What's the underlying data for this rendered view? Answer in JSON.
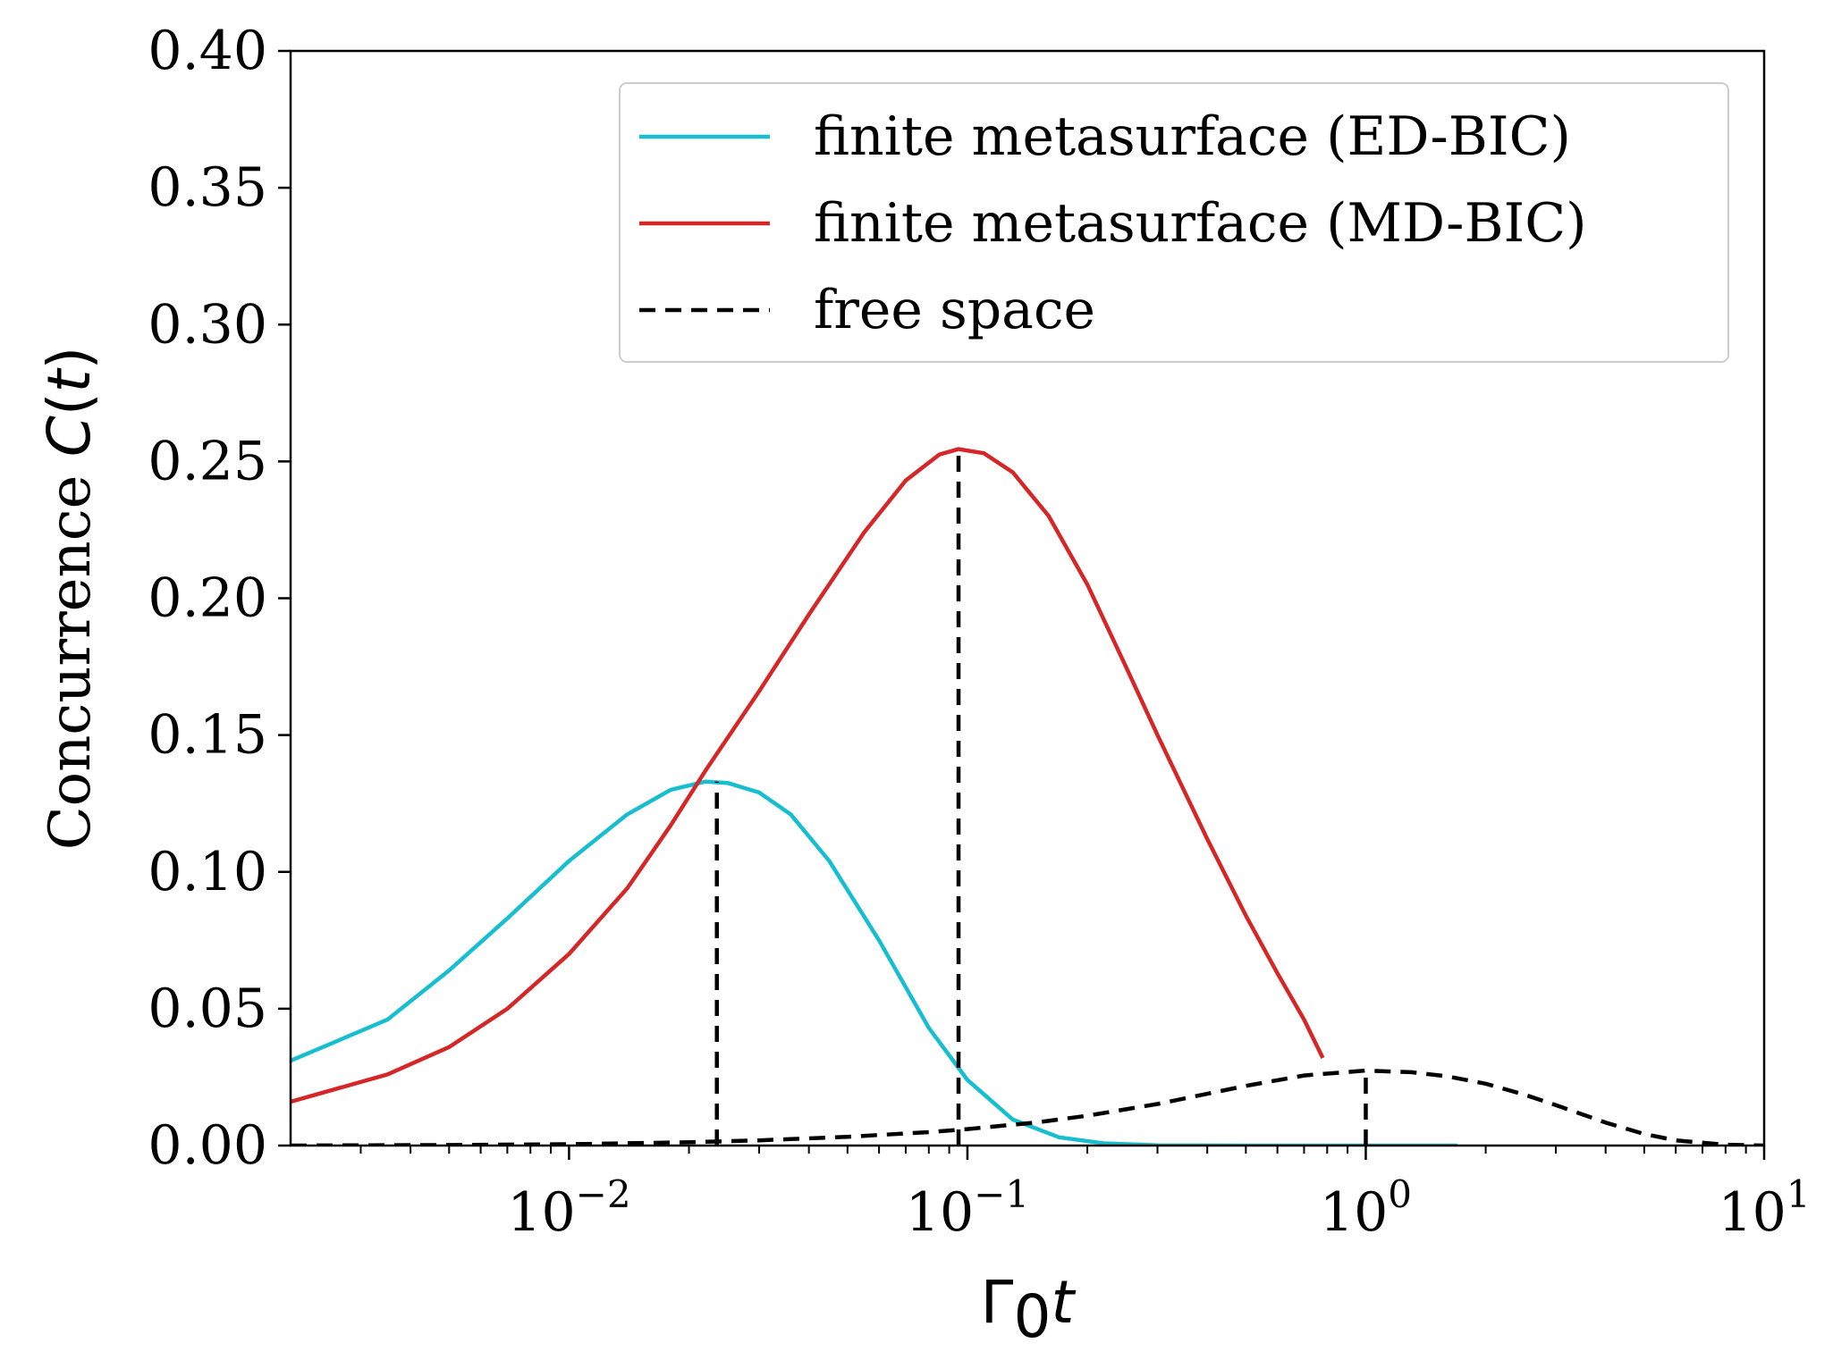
{
  "chart_data": {
    "type": "line",
    "title": "",
    "xlabel": "Γ0t",
    "xlabel_parts": {
      "symbol": "Γ",
      "subscript": "0",
      "var": "t"
    },
    "ylabel": "Concurrence C(t)",
    "ylabel_parts": {
      "text": "Concurrence ",
      "func": "C",
      "open": "(",
      "var": "t",
      "close": ")"
    },
    "xscale": "log",
    "xlim": [
      0.002,
      10
    ],
    "ylim": [
      0,
      0.4
    ],
    "grid": false,
    "legend_position": "top-right",
    "y_ticks": [
      {
        "value": 0.0,
        "label": "0.00"
      },
      {
        "value": 0.05,
        "label": "0.05"
      },
      {
        "value": 0.1,
        "label": "0.10"
      },
      {
        "value": 0.15,
        "label": "0.15"
      },
      {
        "value": 0.2,
        "label": "0.20"
      },
      {
        "value": 0.25,
        "label": "0.25"
      },
      {
        "value": 0.3,
        "label": "0.30"
      },
      {
        "value": 0.35,
        "label": "0.35"
      },
      {
        "value": 0.4,
        "label": "0.40"
      }
    ],
    "x_ticks": [
      {
        "value": 0.01,
        "base": "10",
        "exp": "−2"
      },
      {
        "value": 0.1,
        "base": "10",
        "exp": "−1"
      },
      {
        "value": 1,
        "base": "10",
        "exp": "0"
      },
      {
        "value": 10,
        "base": "10",
        "exp": "1"
      }
    ],
    "series": [
      {
        "name": "finite metasurface (ED-BIC)",
        "color": "#17becf",
        "dash": "solid",
        "x": [
          0.002,
          0.0035,
          0.005,
          0.007,
          0.01,
          0.014,
          0.018,
          0.022,
          0.025,
          0.03,
          0.036,
          0.045,
          0.06,
          0.08,
          0.1,
          0.13,
          0.17,
          0.22,
          0.3,
          0.5,
          1.0,
          1.7
        ],
        "y": [
          0.031,
          0.046,
          0.064,
          0.083,
          0.104,
          0.121,
          0.13,
          0.133,
          0.1325,
          0.129,
          0.121,
          0.104,
          0.075,
          0.043,
          0.024,
          0.0095,
          0.003,
          0.0008,
          0.0001,
          0.0,
          0.0,
          0.0
        ]
      },
      {
        "name": "finite metasurface (MD-BIC)",
        "color": "#d62728",
        "dash": "solid",
        "x": [
          0.002,
          0.0035,
          0.005,
          0.007,
          0.01,
          0.014,
          0.018,
          0.022,
          0.03,
          0.04,
          0.055,
          0.07,
          0.085,
          0.095,
          0.11,
          0.13,
          0.16,
          0.2,
          0.25,
          0.3,
          0.4,
          0.5,
          0.6,
          0.7,
          0.78
        ],
        "y": [
          0.016,
          0.026,
          0.036,
          0.05,
          0.07,
          0.094,
          0.117,
          0.137,
          0.166,
          0.194,
          0.224,
          0.243,
          0.2525,
          0.2545,
          0.253,
          0.246,
          0.23,
          0.205,
          0.175,
          0.15,
          0.112,
          0.084,
          0.063,
          0.046,
          0.032
        ]
      },
      {
        "name": "free space",
        "color": "#000000",
        "dash": "dashed",
        "x": [
          0.002,
          0.005,
          0.01,
          0.02,
          0.03,
          0.05,
          0.08,
          0.1,
          0.15,
          0.2,
          0.3,
          0.5,
          0.7,
          1.0,
          1.3,
          1.6,
          2.0,
          2.5,
          3.0,
          4.0,
          5.0,
          6.0,
          8.0,
          10.0
        ],
        "y": [
          0.0,
          0.0002,
          0.0005,
          0.0012,
          0.0019,
          0.0032,
          0.0049,
          0.006,
          0.0085,
          0.0109,
          0.0152,
          0.0218,
          0.0256,
          0.0274,
          0.0268,
          0.0253,
          0.0226,
          0.0186,
          0.0148,
          0.0084,
          0.0042,
          0.0019,
          0.0003,
          0.0
        ]
      }
    ],
    "annotations": [
      {
        "type": "vline-dashed",
        "x": 0.0235,
        "y": 0.133,
        "color": "#000000"
      },
      {
        "type": "vline-dashed",
        "x": 0.095,
        "y": 0.2545,
        "color": "#000000"
      },
      {
        "type": "vline-dashed",
        "x": 1.0,
        "y": 0.0274,
        "color": "#000000"
      }
    ]
  }
}
